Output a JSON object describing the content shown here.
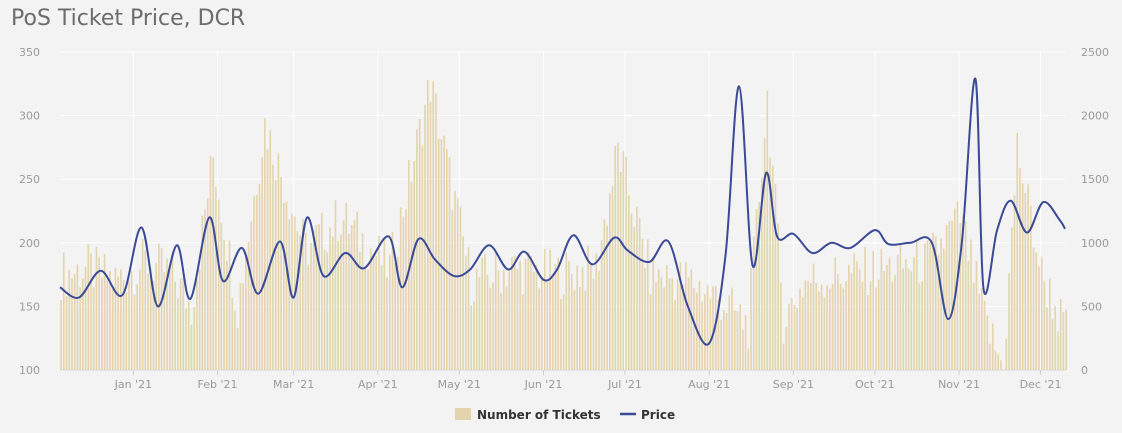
{
  "chart_data": {
    "type": "bar+line",
    "title": "PoS Ticket Price, DCR",
    "x_ticks": [
      "Jan '21",
      "Feb '21",
      "Mar '21",
      "Apr '21",
      "May '21",
      "Jun '21",
      "Jul '21",
      "Aug '21",
      "Sep '21",
      "Oct '21",
      "Nov '21",
      "Dec '21"
    ],
    "x_range": [
      "2020-12-05",
      "2021-12-10"
    ],
    "left_axis": {
      "ticks": [
        100,
        150,
        200,
        250,
        300,
        350
      ],
      "ylim": [
        100,
        350
      ]
    },
    "right_axis": {
      "ticks": [
        0,
        500,
        1000,
        1500,
        2000,
        2500
      ],
      "ylim": [
        0,
        2500
      ]
    },
    "grid": true,
    "legend_placement": "bottom-center",
    "colors": {
      "tickets": "#e3d4ad",
      "price": "#3a4a96",
      "grid": "#ffffff",
      "background": "#f3f3f3"
    },
    "series": [
      {
        "name": "Number of Tickets",
        "axis": "left",
        "kind": "bar",
        "x": [
          "2020-12-05",
          "2020-12-15",
          "2020-12-25",
          "2021-01-05",
          "2021-01-15",
          "2021-01-22",
          "2021-01-30",
          "2021-02-08",
          "2021-02-18",
          "2021-03-05",
          "2021-03-18",
          "2021-04-05",
          "2021-04-20",
          "2021-05-05",
          "2021-05-20",
          "2021-06-05",
          "2021-06-20",
          "2021-06-28",
          "2021-07-10",
          "2021-07-25",
          "2021-08-05",
          "2021-08-15",
          "2021-08-22",
          "2021-08-28",
          "2021-09-05",
          "2021-09-20",
          "2021-10-05",
          "2021-10-20",
          "2021-11-01",
          "2021-11-10",
          "2021-11-17",
          "2021-11-22",
          "2021-12-01",
          "2021-12-10"
        ],
        "values": [
          175,
          180,
          170,
          185,
          175,
          150,
          268,
          150,
          294,
          195,
          220,
          180,
          325,
          170,
          180,
          175,
          180,
          273,
          175,
          170,
          155,
          135,
          315,
          140,
          170,
          175,
          180,
          185,
          220,
          140,
          100,
          275,
          175,
          130
        ]
      },
      {
        "name": "Price",
        "axis": "right",
        "kind": "line",
        "x": [
          "2020-12-05",
          "2020-12-12",
          "2020-12-20",
          "2020-12-28",
          "2021-01-04",
          "2021-01-10",
          "2021-01-17",
          "2021-01-22",
          "2021-01-29",
          "2021-02-03",
          "2021-02-10",
          "2021-02-16",
          "2021-02-24",
          "2021-03-01",
          "2021-03-06",
          "2021-03-12",
          "2021-03-20",
          "2021-03-27",
          "2021-04-05",
          "2021-04-10",
          "2021-04-16",
          "2021-04-22",
          "2021-04-29",
          "2021-05-05",
          "2021-05-12",
          "2021-05-19",
          "2021-05-25",
          "2021-06-01",
          "2021-06-06",
          "2021-06-12",
          "2021-06-19",
          "2021-06-27",
          "2021-07-02",
          "2021-07-10",
          "2021-07-17",
          "2021-07-24",
          "2021-08-01",
          "2021-08-07",
          "2021-08-12",
          "2021-08-17",
          "2021-08-22",
          "2021-08-26",
          "2021-09-01",
          "2021-09-08",
          "2021-09-15",
          "2021-09-22",
          "2021-10-01",
          "2021-10-06",
          "2021-10-14",
          "2021-10-22",
          "2021-10-28",
          "2021-11-02",
          "2021-11-07",
          "2021-11-10",
          "2021-11-15",
          "2021-11-20",
          "2021-11-26",
          "2021-12-02",
          "2021-12-08",
          "2021-12-10"
        ],
        "values": [
          650,
          570,
          780,
          590,
          1120,
          500,
          980,
          560,
          1200,
          700,
          960,
          600,
          1010,
          570,
          1200,
          740,
          920,
          800,
          1050,
          650,
          1030,
          870,
          740,
          790,
          980,
          790,
          930,
          710,
          790,
          1060,
          830,
          1040,
          940,
          850,
          1010,
          510,
          210,
          900,
          2230,
          820,
          1550,
          1050,
          1070,
          920,
          1000,
          960,
          1100,
          990,
          1000,
          1000,
          400,
          1000,
          2290,
          640,
          1100,
          1330,
          1080,
          1320,
          1180,
          1110
        ]
      }
    ]
  }
}
